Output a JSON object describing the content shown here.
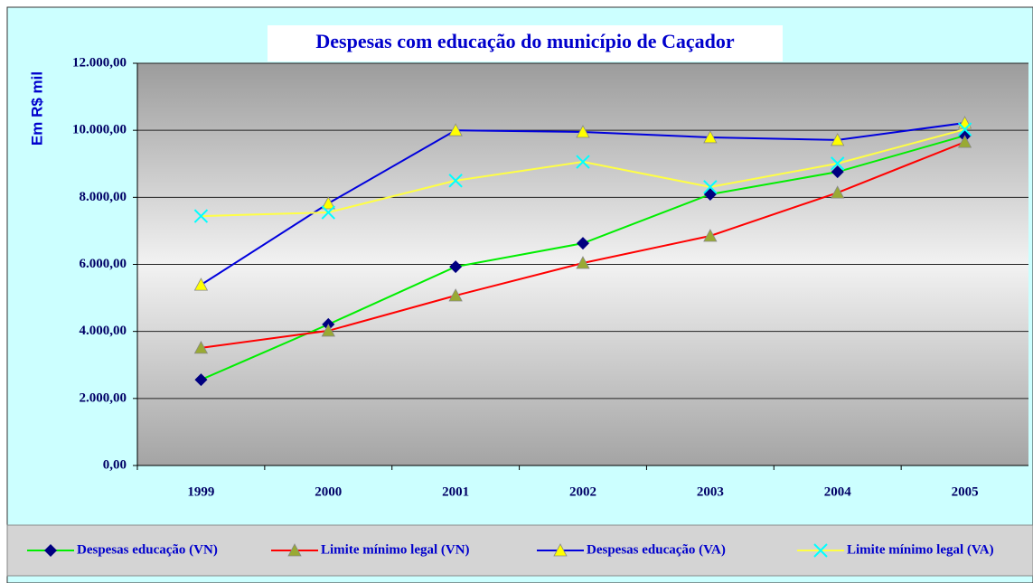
{
  "chart_data": {
    "type": "line",
    "title": "Despesas com educação do município de Caçador",
    "y_label": "Em R$ mil",
    "categories": [
      "1999",
      "2000",
      "2001",
      "2002",
      "2003",
      "2004",
      "2005"
    ],
    "series": [
      {
        "name": "Despesas educação (VN)",
        "color": "#00ee00",
        "marker": "diamond",
        "marker_color": "#000080",
        "values": [
          2560,
          4210,
          5930,
          6630,
          8090,
          8760,
          9840
        ]
      },
      {
        "name": "Limite mínimo legal (VN)",
        "color": "#ff0000",
        "marker": "triangle",
        "marker_color": "#99aa33",
        "values": [
          3510,
          4020,
          5070,
          6040,
          6850,
          8140,
          9650
        ]
      },
      {
        "name": "Despesas educação (VA)",
        "color": "#0000dd",
        "marker": "triangle",
        "marker_color": "#ffff00",
        "values": [
          5390,
          7820,
          10000,
          9950,
          9790,
          9710,
          10220
        ]
      },
      {
        "name": "Limite mínimo legal (VA)",
        "color": "#ffff44",
        "marker": "x",
        "marker_color": "#00ffff",
        "values": [
          7440,
          7550,
          8500,
          9060,
          8310,
          9010,
          10030
        ]
      }
    ],
    "ylim": [
      0,
      12000
    ],
    "yticks": [
      {
        "value": 0,
        "label": "0,00"
      },
      {
        "value": 2000,
        "label": "2.000,00"
      },
      {
        "value": 4000,
        "label": "4.000,00"
      },
      {
        "value": 6000,
        "label": "6.000,00"
      },
      {
        "value": 8000,
        "label": "8.000,00"
      },
      {
        "value": 10000,
        "label": "10.000,00"
      },
      {
        "value": 12000,
        "label": "12.000,00"
      }
    ],
    "grid": true,
    "legend": "bottom"
  }
}
